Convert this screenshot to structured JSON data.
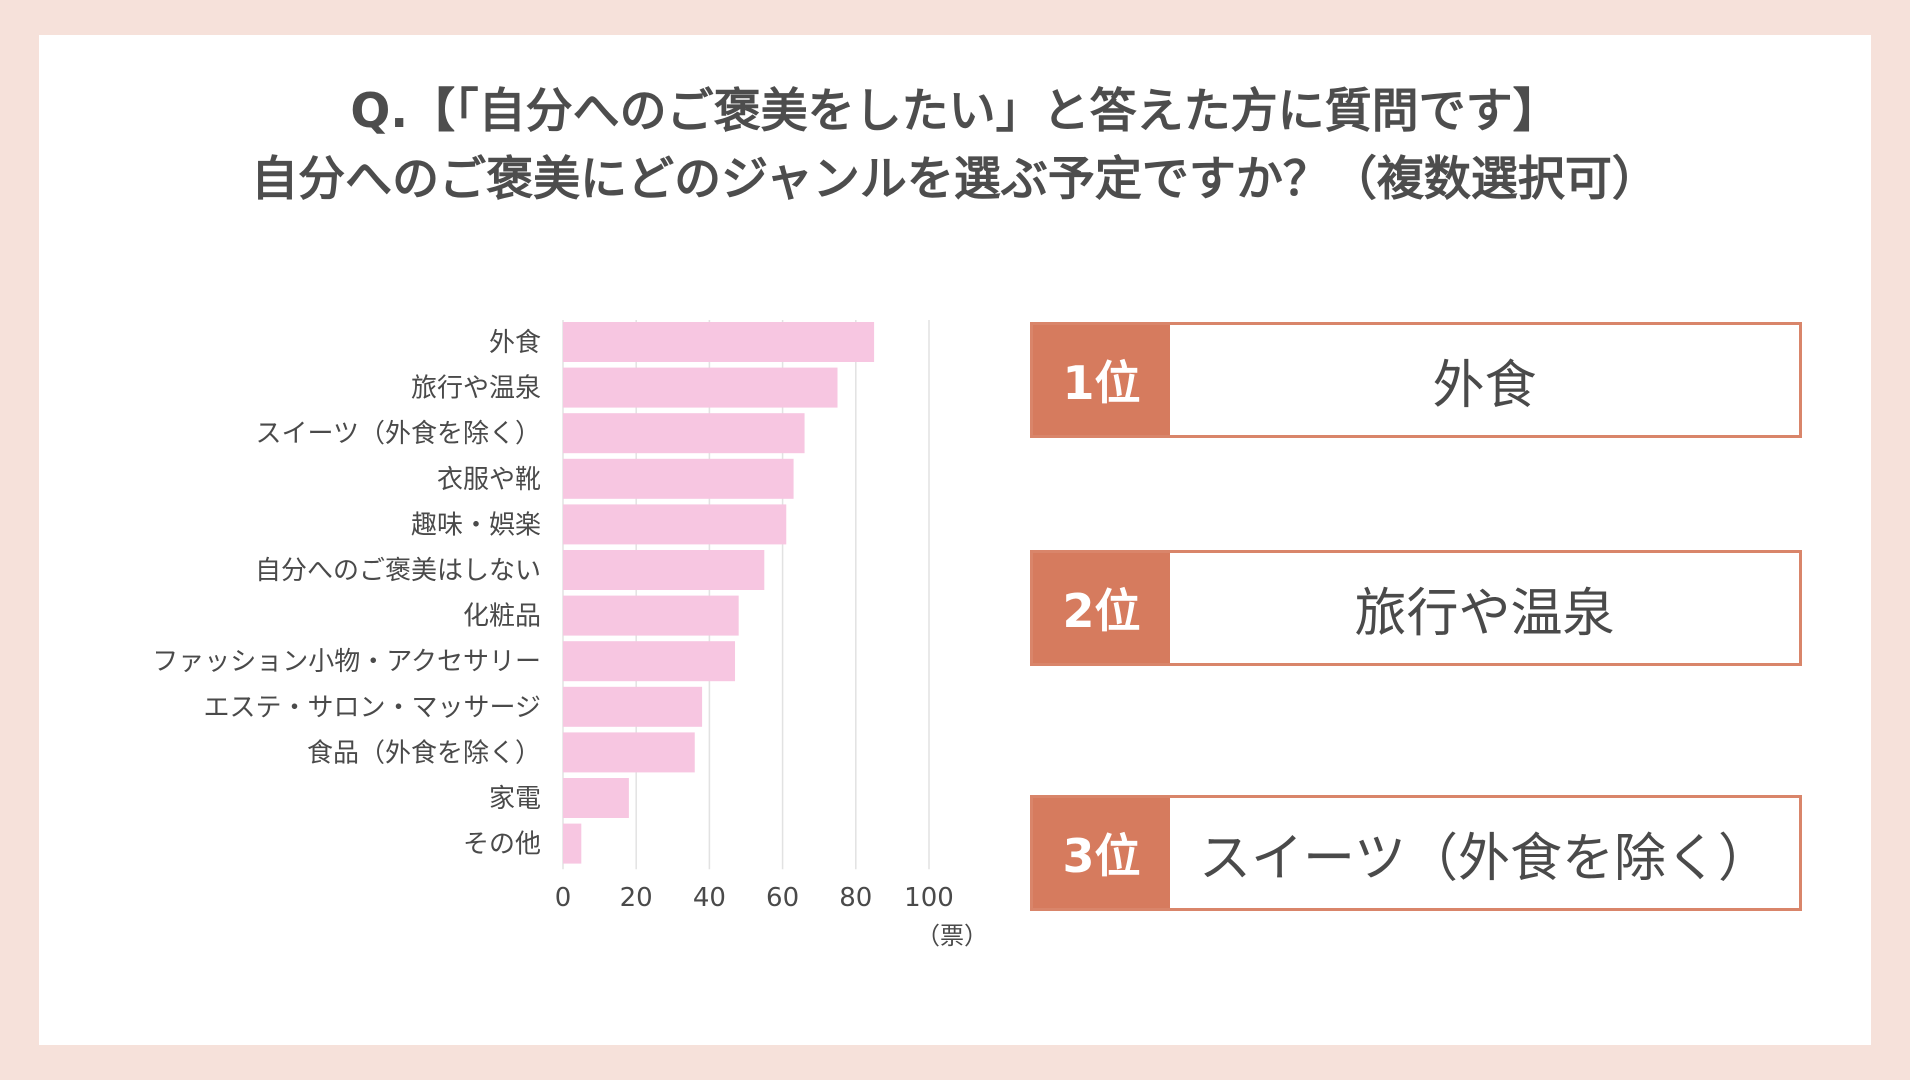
{
  "title": {
    "line1": "Q.【「自分へのご褒美をしたい」と答えた方に質問です】",
    "line2": "自分へのご褒美にどのジャンルを選ぶ予定ですか？（複数選択可）"
  },
  "chart_data": {
    "type": "bar",
    "orientation": "horizontal",
    "categories": [
      "外食",
      "旅行や温泉",
      "スイーツ（外食を除く）",
      "衣服や靴",
      "趣味・娯楽",
      "自分へのご褒美はしない",
      "化粧品",
      "ファッション小物・アクセサリー",
      "エステ・サロン・マッサージ",
      "食品（外食を除く）",
      "家電",
      "その他"
    ],
    "values": [
      85,
      75,
      66,
      63,
      61,
      55,
      48,
      47,
      38,
      36,
      18,
      5
    ],
    "xlim": [
      0,
      100
    ],
    "xticks": [
      "0",
      "20",
      "40",
      "60",
      "80",
      "100"
    ],
    "xunit": "（票）",
    "grid": true,
    "bar_color": "#f7c6e1"
  },
  "ranking": [
    {
      "rank": "1位",
      "item": "外食"
    },
    {
      "rank": "2位",
      "item": "旅行や温泉"
    },
    {
      "rank": "3位",
      "item": "スイーツ（外食を除く）"
    }
  ],
  "colors": {
    "background": "#f6e1da",
    "accent": "#d67b5e",
    "bar": "#f7c6e1"
  }
}
